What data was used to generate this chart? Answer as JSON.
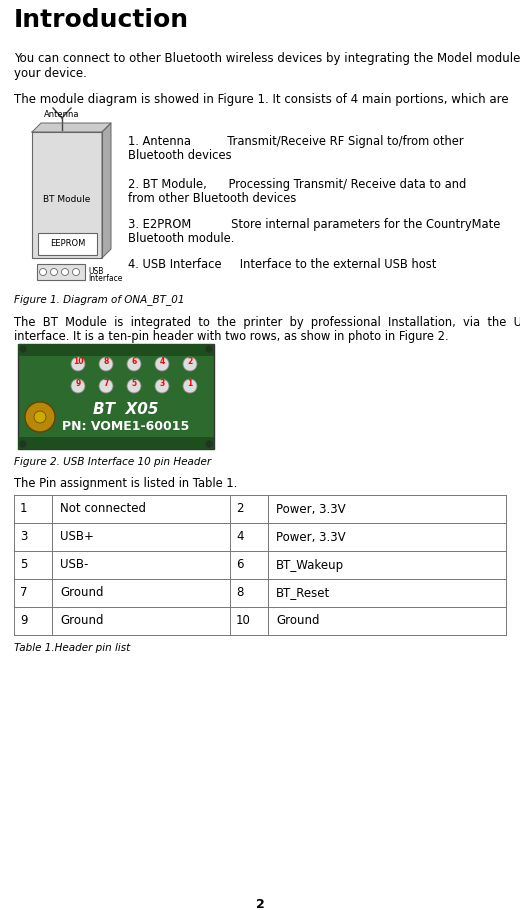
{
  "title": "Introduction",
  "para1_line1": "You can connect to other Bluetooth wireless devices by integrating the Model module to",
  "para1_line2": "your device.",
  "para2": "The module diagram is showed in Figure 1. It consists of 4 main portions, which are",
  "list_item1_a": "1. Antenna          Transmit/Receive RF Signal to/from other",
  "list_item1_b": "Bluetooth devices",
  "list_item2_a": "2. BT Module,      Processing Transmit/ Receive data to and",
  "list_item2_b": "from other Bluetooth devices",
  "list_item3_a": "3. E2PROM           Store internal parameters for the CountryMate",
  "list_item3_b": "Bluetooth module.",
  "list_item4": "4. USB Interface     Interface to the external USB host",
  "fig1_caption": "Figure 1. Diagram of ONA_BT_01",
  "para3_line1": "The  BT  Module  is  integrated  to  the  printer  by  professional  Installation,  via  the  USB",
  "para3_line2": "interface. It is a ten-pin header with two rows, as show in photo in Figure 2.",
  "fig2_caption": "Figure 2. USB Interface 10 pin Header",
  "para4": "The Pin assignment is listed in Table 1.",
  "table_caption": "Table 1.Header pin list",
  "table_data": [
    [
      "1",
      "Not connected",
      "2",
      "Power, 3.3V"
    ],
    [
      "3",
      "USB+",
      "4",
      "Power, 3.3V"
    ],
    [
      "5",
      "USB-",
      "6",
      "BT_Wakeup"
    ],
    [
      "7",
      "Ground",
      "8",
      "BT_Reset"
    ],
    [
      "9",
      "Ground",
      "10",
      "Ground"
    ]
  ],
  "page_number": "2",
  "bg_color": "#ffffff",
  "text_color": "#000000",
  "gray_text": "#888888"
}
